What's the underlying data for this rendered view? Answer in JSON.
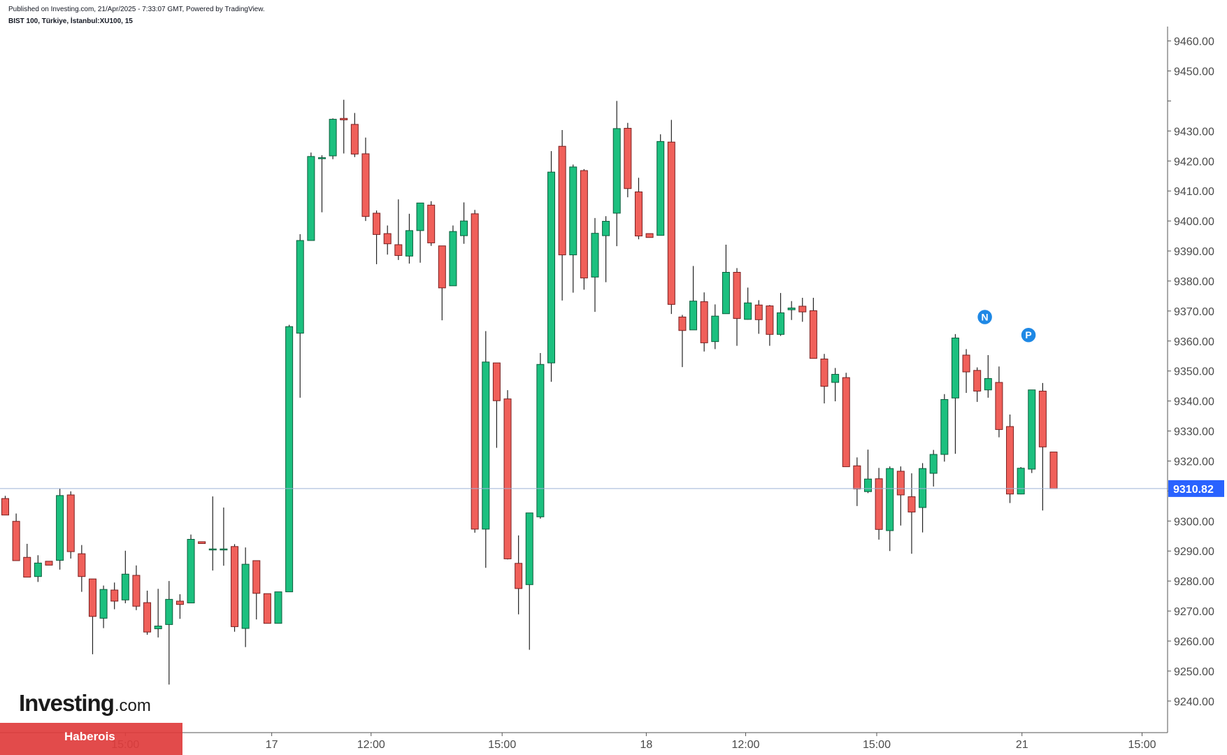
{
  "header": {
    "published": "Published on Investing.com, 21/Apr/2025 - 7:33:07 GMT, Powered by TradingView.",
    "symbol": "BIST 100, Türkiye, İstanbul:XU100, 15"
  },
  "branding": {
    "logo": "Investing",
    "logo_suffix": ".com",
    "banner": "Haberois"
  },
  "colors": {
    "up": "#1cc07f",
    "down": "#f0605a",
    "up_border": "#0c5d3c",
    "down_border": "#7a2020",
    "price_line": "#9db4d6",
    "price_tag": "#2962ff",
    "marker": "#1e88e5"
  },
  "chart_data": {
    "type": "candlestick",
    "interval": "15",
    "symbol": "BIST 100, Türkiye, İstanbul:XU100",
    "ylim": [
      9236,
      9462
    ],
    "y_ticks": [
      9240,
      9250,
      9260,
      9270,
      9280,
      9290,
      9300,
      9310,
      9320,
      9330,
      9340,
      9350,
      9360,
      9370,
      9380,
      9390,
      9400,
      9410,
      9420,
      9430,
      9440,
      9450,
      9460
    ],
    "y_tick_labels": [
      "9240.00",
      "9250.00",
      "9260.00",
      "9270.00",
      "9280.00",
      "9290.00",
      "9300.00",
      "",
      "9320.00",
      "9330.00",
      "9340.00",
      "9350.00",
      "9360.00",
      "9370.00",
      "9380.00",
      "9390.00",
      "9400.00",
      "9410.00",
      "9420.00",
      "9430.00",
      "",
      "9450.00",
      "9460.00"
    ],
    "x_ticks": [
      {
        "index": 11.0,
        "label": "15:00"
      },
      {
        "index": 24.4,
        "label": "17"
      },
      {
        "index": 33.5,
        "label": "12:00"
      },
      {
        "index": 45.5,
        "label": "15:00"
      },
      {
        "index": 58.7,
        "label": "18"
      },
      {
        "index": 67.8,
        "label": "12:00"
      },
      {
        "index": 79.8,
        "label": "15:00"
      },
      {
        "index": 93.1,
        "label": "21"
      },
      {
        "index": 104.1,
        "label": "15:00"
      }
    ],
    "last_price": 9310.82,
    "last_price_label": "9310.82",
    "markers": [
      {
        "index": 89.7,
        "price": 9368.0,
        "label": "N"
      },
      {
        "index": 93.7,
        "price": 9362.0,
        "label": "P"
      }
    ],
    "ohlc": [
      [
        9307.5,
        9308.4,
        9302.0,
        9302.0
      ],
      [
        9299.9,
        9302.5,
        9286.8,
        9286.8
      ],
      [
        9287.9,
        9292.4,
        9281.3,
        9281.3
      ],
      [
        9281.5,
        9288.6,
        9279.7,
        9286.0
      ],
      [
        9286.6,
        9286.6,
        9285.3,
        9285.3
      ],
      [
        9286.9,
        9310.8,
        9283.8,
        9308.5
      ],
      [
        9308.7,
        9309.9,
        9287.5,
        9289.8
      ],
      [
        9289.1,
        9292.0,
        9276.4,
        9281.5
      ],
      [
        9280.7,
        9280.7,
        9255.6,
        9268.2
      ],
      [
        9267.6,
        9278.5,
        9264.3,
        9277.2
      ],
      [
        9277.0,
        9279.5,
        9270.6,
        9273.3
      ],
      [
        9273.7,
        9290.1,
        9272.6,
        9282.3
      ],
      [
        9281.9,
        9285.2,
        9270.3,
        9271.6
      ],
      [
        9272.8,
        9276.8,
        9262.1,
        9263.0
      ],
      [
        9264.1,
        9277.4,
        9261.2,
        9265.0
      ],
      [
        9265.5,
        9280.0,
        9245.5,
        9273.9
      ],
      [
        9273.3,
        9275.6,
        9267.4,
        9272.2
      ],
      [
        9272.7,
        9295.5,
        9272.7,
        9293.9
      ],
      [
        9293.1,
        9293.1,
        9292.5,
        9292.5
      ],
      [
        9290.7,
        9308.2,
        9283.5,
        9290.7
      ],
      [
        9290.7,
        9304.5,
        9285.1,
        9290.7
      ],
      [
        9291.5,
        9292.3,
        9263.1,
        9264.8
      ],
      [
        9264.2,
        9291.2,
        9258.0,
        9285.6
      ],
      [
        9286.8,
        9286.8,
        9267.2,
        9275.9
      ],
      [
        9275.8,
        9275.8,
        9265.9,
        9265.9
      ],
      [
        9265.9,
        9276.4,
        9265.9,
        9276.4
      ],
      [
        9276.4,
        9365.4,
        9276.4,
        9364.8
      ],
      [
        9362.6,
        9395.6,
        9341.1,
        9393.5
      ],
      [
        9393.5,
        9422.8,
        9393.5,
        9421.5
      ],
      [
        9420.8,
        9421.9,
        9402.9,
        9421.1
      ],
      [
        9421.7,
        9434.2,
        9420.6,
        9433.9
      ],
      [
        9434.2,
        9440.4,
        9422.5,
        9433.7
      ],
      [
        9432.2,
        9436.0,
        9421.3,
        9422.3
      ],
      [
        9422.4,
        9427.8,
        9400.0,
        9401.5
      ],
      [
        9402.6,
        9403.5,
        9385.6,
        9395.5
      ],
      [
        9395.8,
        9398.5,
        9388.8,
        9392.4
      ],
      [
        9392.1,
        9407.2,
        9387.0,
        9388.5
      ],
      [
        9388.3,
        9402.4,
        9385.8,
        9396.8
      ],
      [
        9396.8,
        9404.7,
        9386.1,
        9406.0
      ],
      [
        9405.3,
        9406.6,
        9391.7,
        9392.7
      ],
      [
        9391.7,
        9391.7,
        9366.9,
        9377.7
      ],
      [
        9378.4,
        9398.5,
        9378.4,
        9396.5
      ],
      [
        9395.1,
        9406.2,
        9392.4,
        9400.0
      ],
      [
        9402.4,
        9403.7,
        9296.1,
        9297.3
      ],
      [
        9297.3,
        9363.3,
        9284.4,
        9353.0
      ],
      [
        9352.7,
        9352.7,
        9324.4,
        9340.1
      ],
      [
        9340.7,
        9343.6,
        9287.2,
        9287.4
      ],
      [
        9285.9,
        9295.2,
        9268.9,
        9277.5
      ],
      [
        9278.8,
        9302.7,
        9257.1,
        9302.7
      ],
      [
        9301.4,
        9356.0,
        9300.8,
        9352.2
      ],
      [
        9352.7,
        9423.3,
        9346.4,
        9416.3
      ],
      [
        9424.9,
        9430.3,
        9373.5,
        9388.7
      ],
      [
        9388.7,
        9418.8,
        9376.1,
        9418.0
      ],
      [
        9416.8,
        9417.3,
        9377.1,
        9381.0
      ],
      [
        9381.3,
        9401.0,
        9369.7,
        9395.9
      ],
      [
        9395.1,
        9401.6,
        9379.6,
        9399.9
      ],
      [
        9402.6,
        9440.0,
        9391.6,
        9430.8
      ],
      [
        9430.9,
        9432.7,
        9407.9,
        9410.8
      ],
      [
        9409.7,
        9414.4,
        9393.9,
        9395.0
      ],
      [
        9395.8,
        9395.8,
        9394.5,
        9394.5
      ],
      [
        9395.2,
        9428.9,
        9395.2,
        9426.5
      ],
      [
        9426.3,
        9433.7,
        9369.0,
        9372.2
      ],
      [
        9368.0,
        9368.7,
        9351.3,
        9363.5
      ],
      [
        9363.7,
        9385.0,
        9365.5,
        9373.3
      ],
      [
        9373.1,
        9376.2,
        9356.5,
        9359.4
      ],
      [
        9359.8,
        9372.2,
        9357.3,
        9368.3
      ],
      [
        9369.1,
        9392.1,
        9369.1,
        9382.9
      ],
      [
        9382.9,
        9384.3,
        9358.4,
        9367.5
      ],
      [
        9367.2,
        9377.8,
        9367.1,
        9372.7
      ],
      [
        9372.0,
        9373.6,
        9362.4,
        9367.1
      ],
      [
        9371.7,
        9372.0,
        9358.4,
        9362.2
      ],
      [
        9362.2,
        9376.0,
        9361.7,
        9369.4
      ],
      [
        9370.4,
        9373.3,
        9367.0,
        9371.0
      ],
      [
        9371.6,
        9374.4,
        9366.4,
        9369.7
      ],
      [
        9370.1,
        9374.4,
        9354.3,
        9354.2
      ],
      [
        9354.0,
        9355.7,
        9339.2,
        9344.9
      ],
      [
        9346.2,
        9351.0,
        9339.9,
        9348.9
      ],
      [
        9347.8,
        9349.4,
        9318.0,
        9318.1
      ],
      [
        9318.4,
        9321.2,
        9305.0,
        9310.7
      ],
      [
        9309.8,
        9323.8,
        9309.3,
        9314.0
      ],
      [
        9314.1,
        9317.7,
        9293.8,
        9297.2
      ],
      [
        9296.8,
        9318.2,
        9290.0,
        9317.5
      ],
      [
        9316.6,
        9318.2,
        9298.5,
        9308.7
      ],
      [
        9308.1,
        9315.9,
        9289.1,
        9303.0
      ],
      [
        9304.5,
        9319.3,
        9296.2,
        9317.5
      ],
      [
        9315.9,
        9323.7,
        9311.5,
        9322.2
      ],
      [
        9322.2,
        9342.3,
        9319.8,
        9340.5
      ],
      [
        9341.0,
        9362.3,
        9322.4,
        9361.0
      ],
      [
        9355.3,
        9357.3,
        9342.7,
        9349.7
      ],
      [
        9350.2,
        9351.2,
        9339.7,
        9343.3
      ],
      [
        9343.7,
        9355.3,
        9341.1,
        9347.5
      ],
      [
        9346.2,
        9351.5,
        9327.9,
        9330.5
      ],
      [
        9331.5,
        9335.5,
        9306.0,
        9309.0
      ],
      [
        9309.0,
        9318.0,
        9308.9,
        9317.6
      ],
      [
        9317.3,
        9343.7,
        9316.0,
        9343.7
      ],
      [
        9343.3,
        9346.0,
        9303.5,
        9324.7
      ],
      [
        9323.0,
        9323.0,
        9310.8,
        9310.8
      ]
    ]
  }
}
